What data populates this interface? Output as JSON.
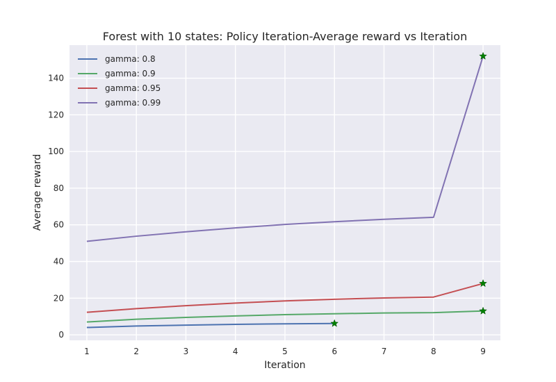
{
  "chart_data": {
    "type": "line",
    "title": "Forest with 10 states: Policy Iteration-Average reward vs Iteration",
    "xlabel": "Iteration",
    "ylabel": "Average reward",
    "xlim": [
      0.65,
      9.35
    ],
    "ylim": [
      -3,
      158
    ],
    "xticks": [
      1,
      2,
      3,
      4,
      5,
      6,
      7,
      8,
      9
    ],
    "yticks": [
      0,
      20,
      40,
      60,
      80,
      100,
      120,
      140
    ],
    "grid": true,
    "legend_position": "top-left",
    "background_color": "#eaeaf2",
    "grid_color": "#ffffff",
    "marker": {
      "shape": "star",
      "color": "#008000",
      "placement": "last-point"
    },
    "series": [
      {
        "name": "gamma: 0.8",
        "color": "#4c72b0",
        "x": [
          1,
          2,
          3,
          4,
          5,
          6
        ],
        "y": [
          4,
          4.8,
          5.3,
          5.7,
          6,
          6.2
        ]
      },
      {
        "name": "gamma: 0.9",
        "color": "#55a868",
        "x": [
          1,
          2,
          3,
          4,
          5,
          6,
          7,
          8,
          9
        ],
        "y": [
          7,
          8.5,
          9.5,
          10.3,
          11,
          11.5,
          11.9,
          12.1,
          13
        ]
      },
      {
        "name": "gamma: 0.95",
        "color": "#c44e52",
        "x": [
          1,
          2,
          3,
          4,
          5,
          6,
          7,
          8,
          9
        ],
        "y": [
          12.3,
          14.3,
          15.9,
          17.3,
          18.5,
          19.4,
          20.1,
          20.6,
          28
        ]
      },
      {
        "name": "gamma: 0.99",
        "color": "#8172b2",
        "x": [
          1,
          2,
          3,
          4,
          5,
          6,
          7,
          8,
          9
        ],
        "y": [
          51,
          53.8,
          56.2,
          58.3,
          60.2,
          61.7,
          63,
          64.1,
          152
        ]
      }
    ]
  }
}
